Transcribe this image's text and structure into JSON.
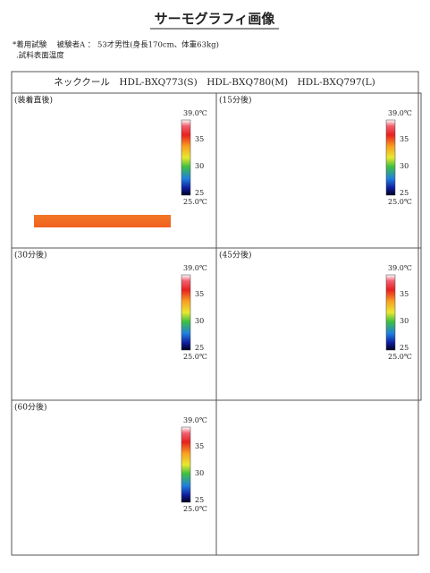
{
  "title": "サーモグラフィ画像",
  "notes": [
    "*着用試験　 被験者A ： 53才男性(身長170cm、体重63kg)",
    ".試料表面温度"
  ],
  "table": {
    "header": "ネッククール　HDL-BXQ773(S)　HDL-BXQ780(M)　HDL-BXQ797(L)",
    "panels": [
      {
        "label": "(装着直後)"
      },
      {
        "label": "(15分後)"
      },
      {
        "label": "(30分後)"
      },
      {
        "label": "(45分後)"
      },
      {
        "label": "(60分後)"
      }
    ],
    "scale": {
      "max": "39.0℃",
      "ticks": [
        "35",
        "30",
        "25"
      ],
      "min": "25.0℃"
    }
  }
}
